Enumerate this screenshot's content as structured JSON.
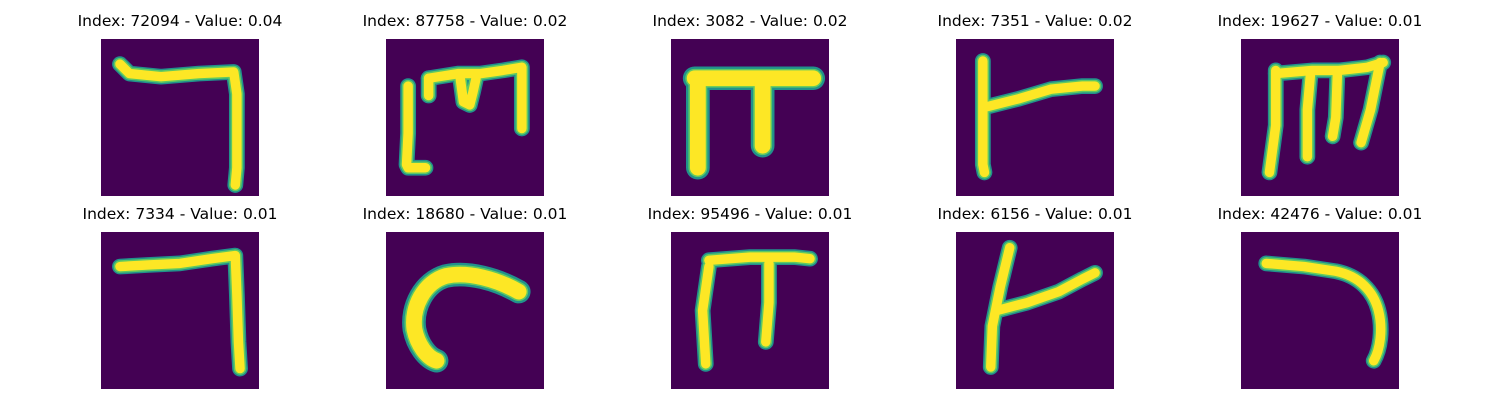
{
  "colors": {
    "background": "#440154",
    "mid": "#21918c",
    "light": "#5ec962",
    "stroke": "#fde725"
  },
  "panels": [
    {
      "title": "Index: 72094 - Value: 0.04",
      "glyph": "hook-right-down"
    },
    {
      "title": "Index: 87758 - Value: 0.02",
      "glyph": "broken-m"
    },
    {
      "title": "Index: 3082 - Value: 0.02",
      "glyph": "pi-thick"
    },
    {
      "title": "Index: 7351 - Value: 0.02",
      "glyph": "bar-with-arm"
    },
    {
      "title": "Index: 19627 - Value: 0.01",
      "glyph": "m-shape"
    },
    {
      "title": "Index: 7334 - Value: 0.01",
      "glyph": "hook-right-down-thin"
    },
    {
      "title": "Index: 18680 - Value: 0.01",
      "glyph": "curved-c"
    },
    {
      "title": "Index: 95496 - Value: 0.01",
      "glyph": "pi-thin"
    },
    {
      "title": "Index: 6156 - Value: 0.01",
      "glyph": "slanted-bar-with-arm"
    },
    {
      "title": "Index: 42476 - Value: 0.01",
      "glyph": "hook-curve-down"
    }
  ]
}
